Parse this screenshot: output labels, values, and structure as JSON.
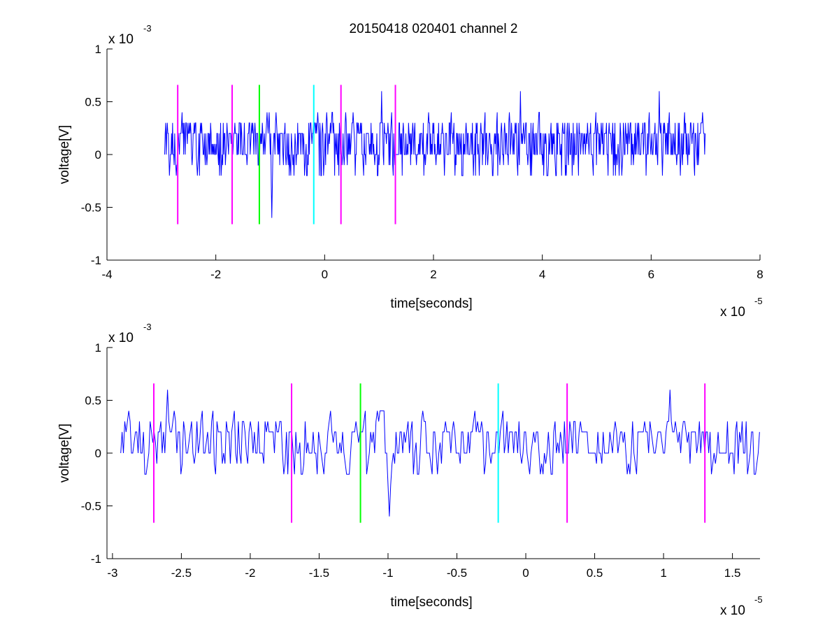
{
  "figure_title": "20150418 020401 channel 2",
  "chart_data": [
    {
      "type": "line",
      "title": "20150418 020401 channel 2",
      "xlabel": "time[seconds]",
      "ylabel": "voltage[V]",
      "x_multiplier_label": "x 10",
      "x_multiplier_exp": "-5",
      "y_multiplier_label": "x 10",
      "y_multiplier_exp": "-3",
      "xlim": [
        -4,
        8
      ],
      "ylim": [
        -1,
        1
      ],
      "x_ticks": [
        -4,
        -2,
        0,
        2,
        4,
        6,
        8
      ],
      "x_tick_labels": [
        "-4",
        "-2",
        "0",
        "2",
        "4",
        "6",
        "8"
      ],
      "y_ticks": [
        -1,
        -0.5,
        0,
        0.5,
        1
      ],
      "y_tick_labels": [
        "-1",
        "-0.5",
        "0",
        "0.5",
        "1"
      ],
      "grid": false,
      "signal": {
        "color": "#0000ff",
        "x_range": [
          -2.94,
          7.0
        ],
        "quantization_step": 0.1,
        "typical_range": [
          -0.2,
          0.4
        ],
        "baseline_levels": [
          0,
          0.2
        ],
        "notable_points": [
          {
            "x": -0.97,
            "y": -0.6
          },
          {
            "x": 1.05,
            "y": 0.6
          },
          {
            "x": 3.6,
            "y": 0.6
          },
          {
            "x": 6.15,
            "y": 0.6
          }
        ]
      },
      "markers": [
        {
          "x": -2.7,
          "y_range": [
            -0.66,
            0.66
          ],
          "color": "#ff00ff"
        },
        {
          "x": -1.7,
          "y_range": [
            -0.66,
            0.66
          ],
          "color": "#ff00ff"
        },
        {
          "x": -1.2,
          "y_range": [
            -0.66,
            0.66
          ],
          "color": "#00ff00"
        },
        {
          "x": -0.2,
          "y_range": [
            -0.66,
            0.66
          ],
          "color": "#00ffff"
        },
        {
          "x": 0.3,
          "y_range": [
            -0.66,
            0.66
          ],
          "color": "#ff00ff"
        },
        {
          "x": 1.3,
          "y_range": [
            -0.66,
            0.66
          ],
          "color": "#ff00ff"
        }
      ]
    },
    {
      "type": "line",
      "title": "",
      "xlabel": "time[seconds]",
      "ylabel": "voltage[V]",
      "x_multiplier_label": "x 10",
      "x_multiplier_exp": "-5",
      "y_multiplier_label": "x 10",
      "y_multiplier_exp": "-3",
      "xlim": [
        -3.04,
        1.7
      ],
      "ylim": [
        -1,
        1
      ],
      "x_ticks": [
        -3,
        -2.5,
        -2,
        -1.5,
        -1,
        -0.5,
        0,
        0.5,
        1,
        1.5
      ],
      "x_tick_labels": [
        "-3",
        "-2.5",
        "-2",
        "-1.5",
        "-1",
        "-0.5",
        "0",
        "0.5",
        "1",
        "1.5"
      ],
      "y_ticks": [
        -1,
        -0.5,
        0,
        0.5,
        1
      ],
      "y_tick_labels": [
        "-1",
        "-0.5",
        "0",
        "0.5",
        "1"
      ],
      "grid": false,
      "signal": {
        "color": "#0000ff",
        "x_range": [
          -2.94,
          1.7
        ],
        "quantization_step": 0.1,
        "typical_range": [
          -0.2,
          0.4
        ],
        "baseline_levels": [
          0,
          0.2
        ],
        "notable_points": [
          {
            "x": -2.6,
            "y": 0.6
          },
          {
            "x": -0.99,
            "y": -0.6
          },
          {
            "x": 1.05,
            "y": 0.6
          }
        ]
      },
      "markers": [
        {
          "x": -2.7,
          "y_range": [
            -0.66,
            0.66
          ],
          "color": "#ff00ff"
        },
        {
          "x": -1.7,
          "y_range": [
            -0.66,
            0.66
          ],
          "color": "#ff00ff"
        },
        {
          "x": -1.2,
          "y_range": [
            -0.66,
            0.66
          ],
          "color": "#00ff00"
        },
        {
          "x": -0.2,
          "y_range": [
            -0.66,
            0.66
          ],
          "color": "#00ffff"
        },
        {
          "x": 0.3,
          "y_range": [
            -0.66,
            0.66
          ],
          "color": "#ff00ff"
        },
        {
          "x": 1.3,
          "y_range": [
            -0.66,
            0.66
          ],
          "color": "#ff00ff"
        }
      ]
    }
  ]
}
